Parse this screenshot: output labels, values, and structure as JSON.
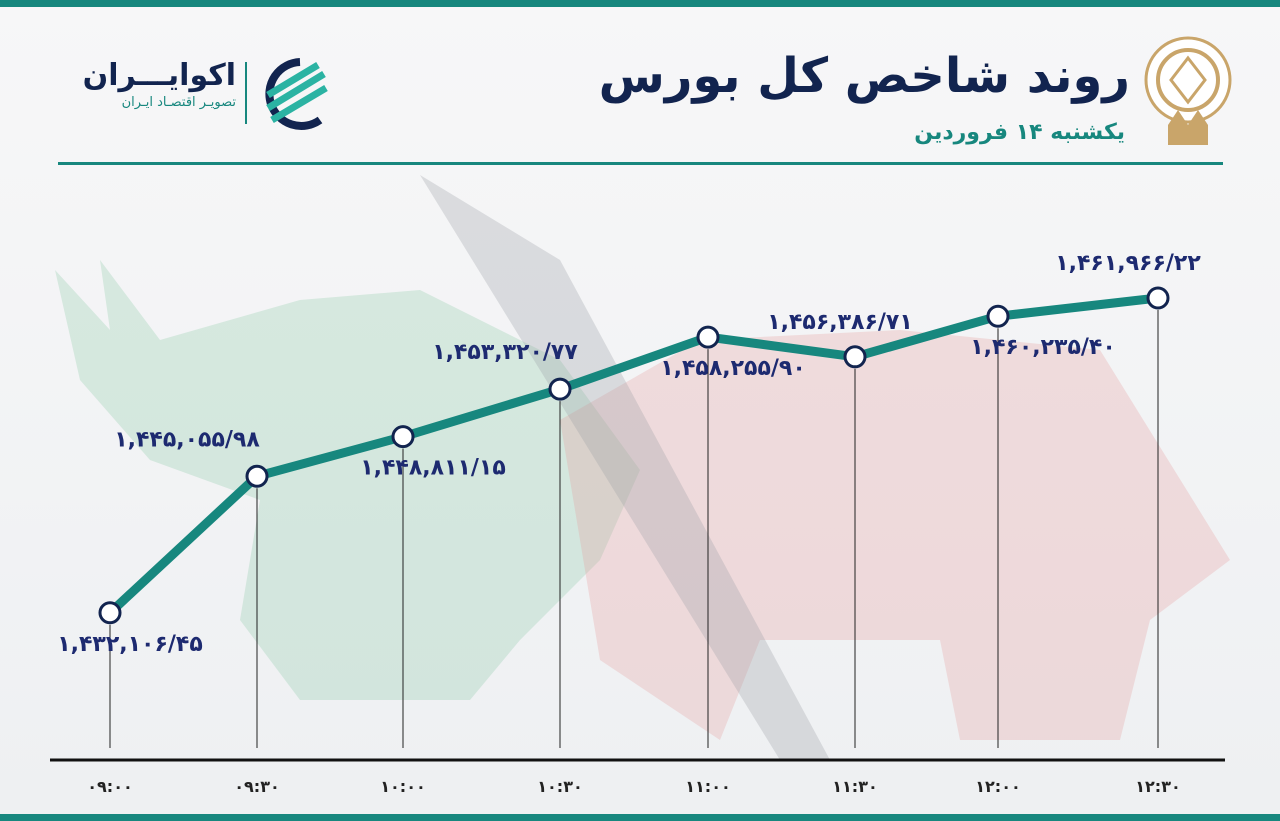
{
  "header": {
    "title": "روند شاخص کل بورس",
    "subtitle": "یکشنبه ۱۴ فروردین"
  },
  "brand": {
    "name": "اکوایـــران",
    "tagline": "تصویـر اقتصـاد ایـران"
  },
  "colors": {
    "line": "#17877e",
    "labels": "#1d2a70",
    "title": "#12244f"
  },
  "icons": {
    "brand_logo": "ecoiran-stripes-logo",
    "exchange_logo": "tehran-stock-exchange-emblem"
  },
  "chart_data": {
    "type": "line",
    "title": "روند شاخص کل بورس",
    "categories": [
      "۰۹:۰۰",
      "۰۹:۳۰",
      "۱۰:۰۰",
      "۱۰:۳۰",
      "۱۱:۰۰",
      "۱۱:۳۰",
      "۱۲:۰۰",
      "۱۲:۳۰"
    ],
    "values": [
      1432106.45,
      1445055.98,
      1448811.15,
      1453320.77,
      1458255.9,
      1456386.71,
      1460235.4,
      1461966.22
    ],
    "data_labels": [
      "۱,۴۳۲,۱۰۶/۴۵",
      "۱,۴۴۵,۰۵۵/۹۸",
      "۱,۴۴۸,۸۱۱/۱۵",
      "۱,۴۵۳,۳۲۰/۷۷",
      "۱,۴۵۸,۲۵۵/۹۰",
      "۱,۴۵۶,۳۸۶/۷۱",
      "۱,۴۶۰,۲۳۵/۴۰",
      "۱,۴۶۱,۹۶۶/۲۲"
    ],
    "ylim": [
      1430000,
      1465000
    ],
    "grid": false,
    "legend": "none"
  }
}
